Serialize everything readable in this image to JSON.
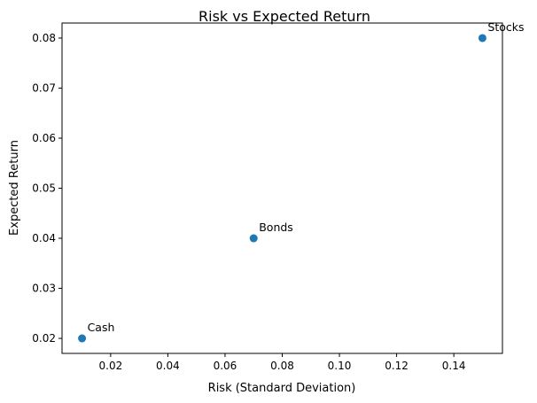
{
  "chart_data": {
    "type": "scatter",
    "title": "Risk vs Expected Return",
    "xlabel": "Risk (Standard Deviation)",
    "ylabel": "Expected Return",
    "xlim": [
      0.003,
      0.157
    ],
    "ylim": [
      0.017,
      0.083
    ],
    "xticks": [
      0.02,
      0.04,
      0.06,
      0.08,
      0.1,
      0.12,
      0.14
    ],
    "xtick_labels": [
      "0.02",
      "0.04",
      "0.06",
      "0.08",
      "0.10",
      "0.12",
      "0.14"
    ],
    "yticks": [
      0.02,
      0.03,
      0.04,
      0.05,
      0.06,
      0.07,
      0.08
    ],
    "ytick_labels": [
      "0.02",
      "0.03",
      "0.04",
      "0.05",
      "0.06",
      "0.07",
      "0.08"
    ],
    "grid": false,
    "points": [
      {
        "label": "Cash",
        "x": 0.01,
        "y": 0.02
      },
      {
        "label": "Bonds",
        "x": 0.07,
        "y": 0.04
      },
      {
        "label": "Stocks",
        "x": 0.15,
        "y": 0.08
      }
    ],
    "marker_color": "#1f77b4"
  }
}
